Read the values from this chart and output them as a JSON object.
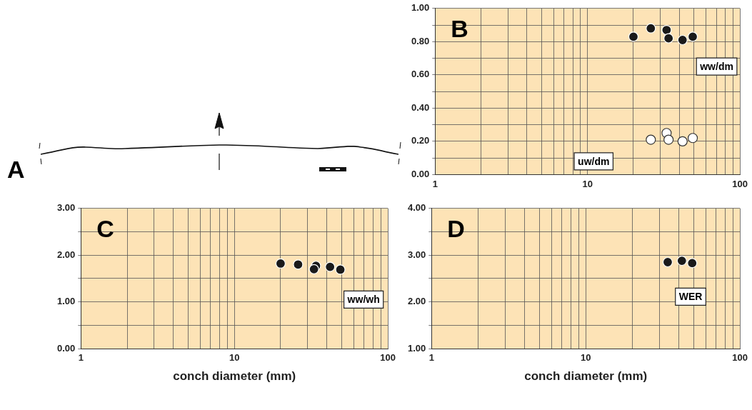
{
  "chart_data": [
    {
      "type": "other",
      "annotations": [
        "A"
      ]
    },
    {
      "type": "scatter",
      "annotations": [
        "B"
      ],
      "log": "x",
      "grid": true,
      "legend": false,
      "marker": "circle",
      "xlim": [
        1,
        100
      ],
      "xticks": [
        1,
        {
          "value": 2,
          "label": null
        },
        {
          "value": 3,
          "label": null
        },
        {
          "value": 4,
          "label": null
        },
        {
          "value": 5,
          "label": null
        },
        {
          "value": 6,
          "label": null
        },
        {
          "value": 7,
          "label": null
        },
        {
          "value": 8,
          "label": null
        },
        {
          "value": 9,
          "label": null
        },
        10,
        {
          "value": 20,
          "label": null
        },
        {
          "value": 30,
          "label": null
        },
        {
          "value": 40,
          "label": null
        },
        {
          "value": 50,
          "label": null
        },
        {
          "value": 60,
          "label": null
        },
        {
          "value": 70,
          "label": null
        },
        {
          "value": 80,
          "label": null
        },
        {
          "value": 90,
          "label": null
        },
        100
      ],
      "ylim": [
        0,
        1
      ],
      "yticks": [
        {
          "value": 0,
          "label": "0.00"
        },
        {
          "value": 0.1,
          "label": null
        },
        {
          "value": 0.2,
          "label": "0.20"
        },
        {
          "value": 0.3,
          "label": null
        },
        {
          "value": 0.4,
          "label": "0.40"
        },
        {
          "value": 0.5,
          "label": null
        },
        {
          "value": 0.6,
          "label": "0.60"
        },
        {
          "value": 0.7,
          "label": null
        },
        {
          "value": 0.8,
          "label": "0.80"
        },
        {
          "value": 0.9,
          "label": null
        },
        {
          "value": 1,
          "label": "1.00"
        }
      ],
      "series": [
        {
          "name": "ww/dm",
          "color": "#1a1a1a",
          "x": [
            20,
            26,
            33,
            34,
            42,
            49
          ],
          "values": [
            0.83,
            0.88,
            0.87,
            0.82,
            0.81,
            0.83
          ]
        },
        {
          "name": "uw/dm",
          "color": "#ffffff",
          "x": [
            26,
            33,
            34,
            42,
            49
          ],
          "values": [
            0.21,
            0.25,
            0.21,
            0.2,
            0.22
          ]
        }
      ]
    },
    {
      "type": "scatter",
      "annotations": [
        "C"
      ],
      "xlabel": "conch diameter (mm)",
      "log": "x",
      "grid": true,
      "legend": false,
      "marker": "circle",
      "xlim": [
        1,
        100
      ],
      "xticks": [
        1,
        {
          "value": 2,
          "label": null
        },
        {
          "value": 3,
          "label": null
        },
        {
          "value": 4,
          "label": null
        },
        {
          "value": 5,
          "label": null
        },
        {
          "value": 6,
          "label": null
        },
        {
          "value": 7,
          "label": null
        },
        {
          "value": 8,
          "label": null
        },
        {
          "value": 9,
          "label": null
        },
        10,
        {
          "value": 20,
          "label": null
        },
        {
          "value": 30,
          "label": null
        },
        {
          "value": 40,
          "label": null
        },
        {
          "value": 50,
          "label": null
        },
        {
          "value": 60,
          "label": null
        },
        {
          "value": 70,
          "label": null
        },
        {
          "value": 80,
          "label": null
        },
        {
          "value": 90,
          "label": null
        },
        100
      ],
      "ylim": [
        0,
        3
      ],
      "yticks": [
        {
          "value": 0,
          "label": "0.00"
        },
        {
          "value": 0.5,
          "label": null
        },
        {
          "value": 1,
          "label": "1.00"
        },
        {
          "value": 1.5,
          "label": null
        },
        {
          "value": 2,
          "label": "2.00"
        },
        {
          "value": 2.5,
          "label": null
        },
        {
          "value": 3,
          "label": "3.00"
        }
      ],
      "series": [
        {
          "name": "ww/wh",
          "color": "#1a1a1a",
          "x": [
            20,
            26,
            34,
            33,
            42,
            49
          ],
          "values": [
            1.82,
            1.8,
            1.77,
            1.7,
            1.75,
            1.69
          ]
        }
      ]
    },
    {
      "type": "scatter",
      "annotations": [
        "D"
      ],
      "xlabel": "conch diameter (mm)",
      "log": "x",
      "grid": true,
      "legend": false,
      "marker": "circle",
      "xlim": [
        1,
        100
      ],
      "xticks": [
        1,
        {
          "value": 2,
          "label": null
        },
        {
          "value": 3,
          "label": null
        },
        {
          "value": 4,
          "label": null
        },
        {
          "value": 5,
          "label": null
        },
        {
          "value": 6,
          "label": null
        },
        {
          "value": 7,
          "label": null
        },
        {
          "value": 8,
          "label": null
        },
        {
          "value": 9,
          "label": null
        },
        10,
        {
          "value": 20,
          "label": null
        },
        {
          "value": 30,
          "label": null
        },
        {
          "value": 40,
          "label": null
        },
        {
          "value": 50,
          "label": null
        },
        {
          "value": 60,
          "label": null
        },
        {
          "value": 70,
          "label": null
        },
        {
          "value": 80,
          "label": null
        },
        {
          "value": 90,
          "label": null
        },
        100
      ],
      "ylim": [
        1,
        4
      ],
      "yticks": [
        {
          "value": 1,
          "label": "1.00"
        },
        {
          "value": 1.5,
          "label": null
        },
        {
          "value": 2,
          "label": "2.00"
        },
        {
          "value": 2.5,
          "label": null
        },
        {
          "value": 3,
          "label": "3.00"
        },
        {
          "value": 3.5,
          "label": null
        },
        {
          "value": 4,
          "label": "4.00"
        }
      ],
      "series": [
        {
          "name": "WER",
          "color": "#1a1a1a",
          "x": [
            34,
            42,
            49
          ],
          "values": [
            2.85,
            2.88,
            2.83
          ]
        }
      ]
    }
  ]
}
